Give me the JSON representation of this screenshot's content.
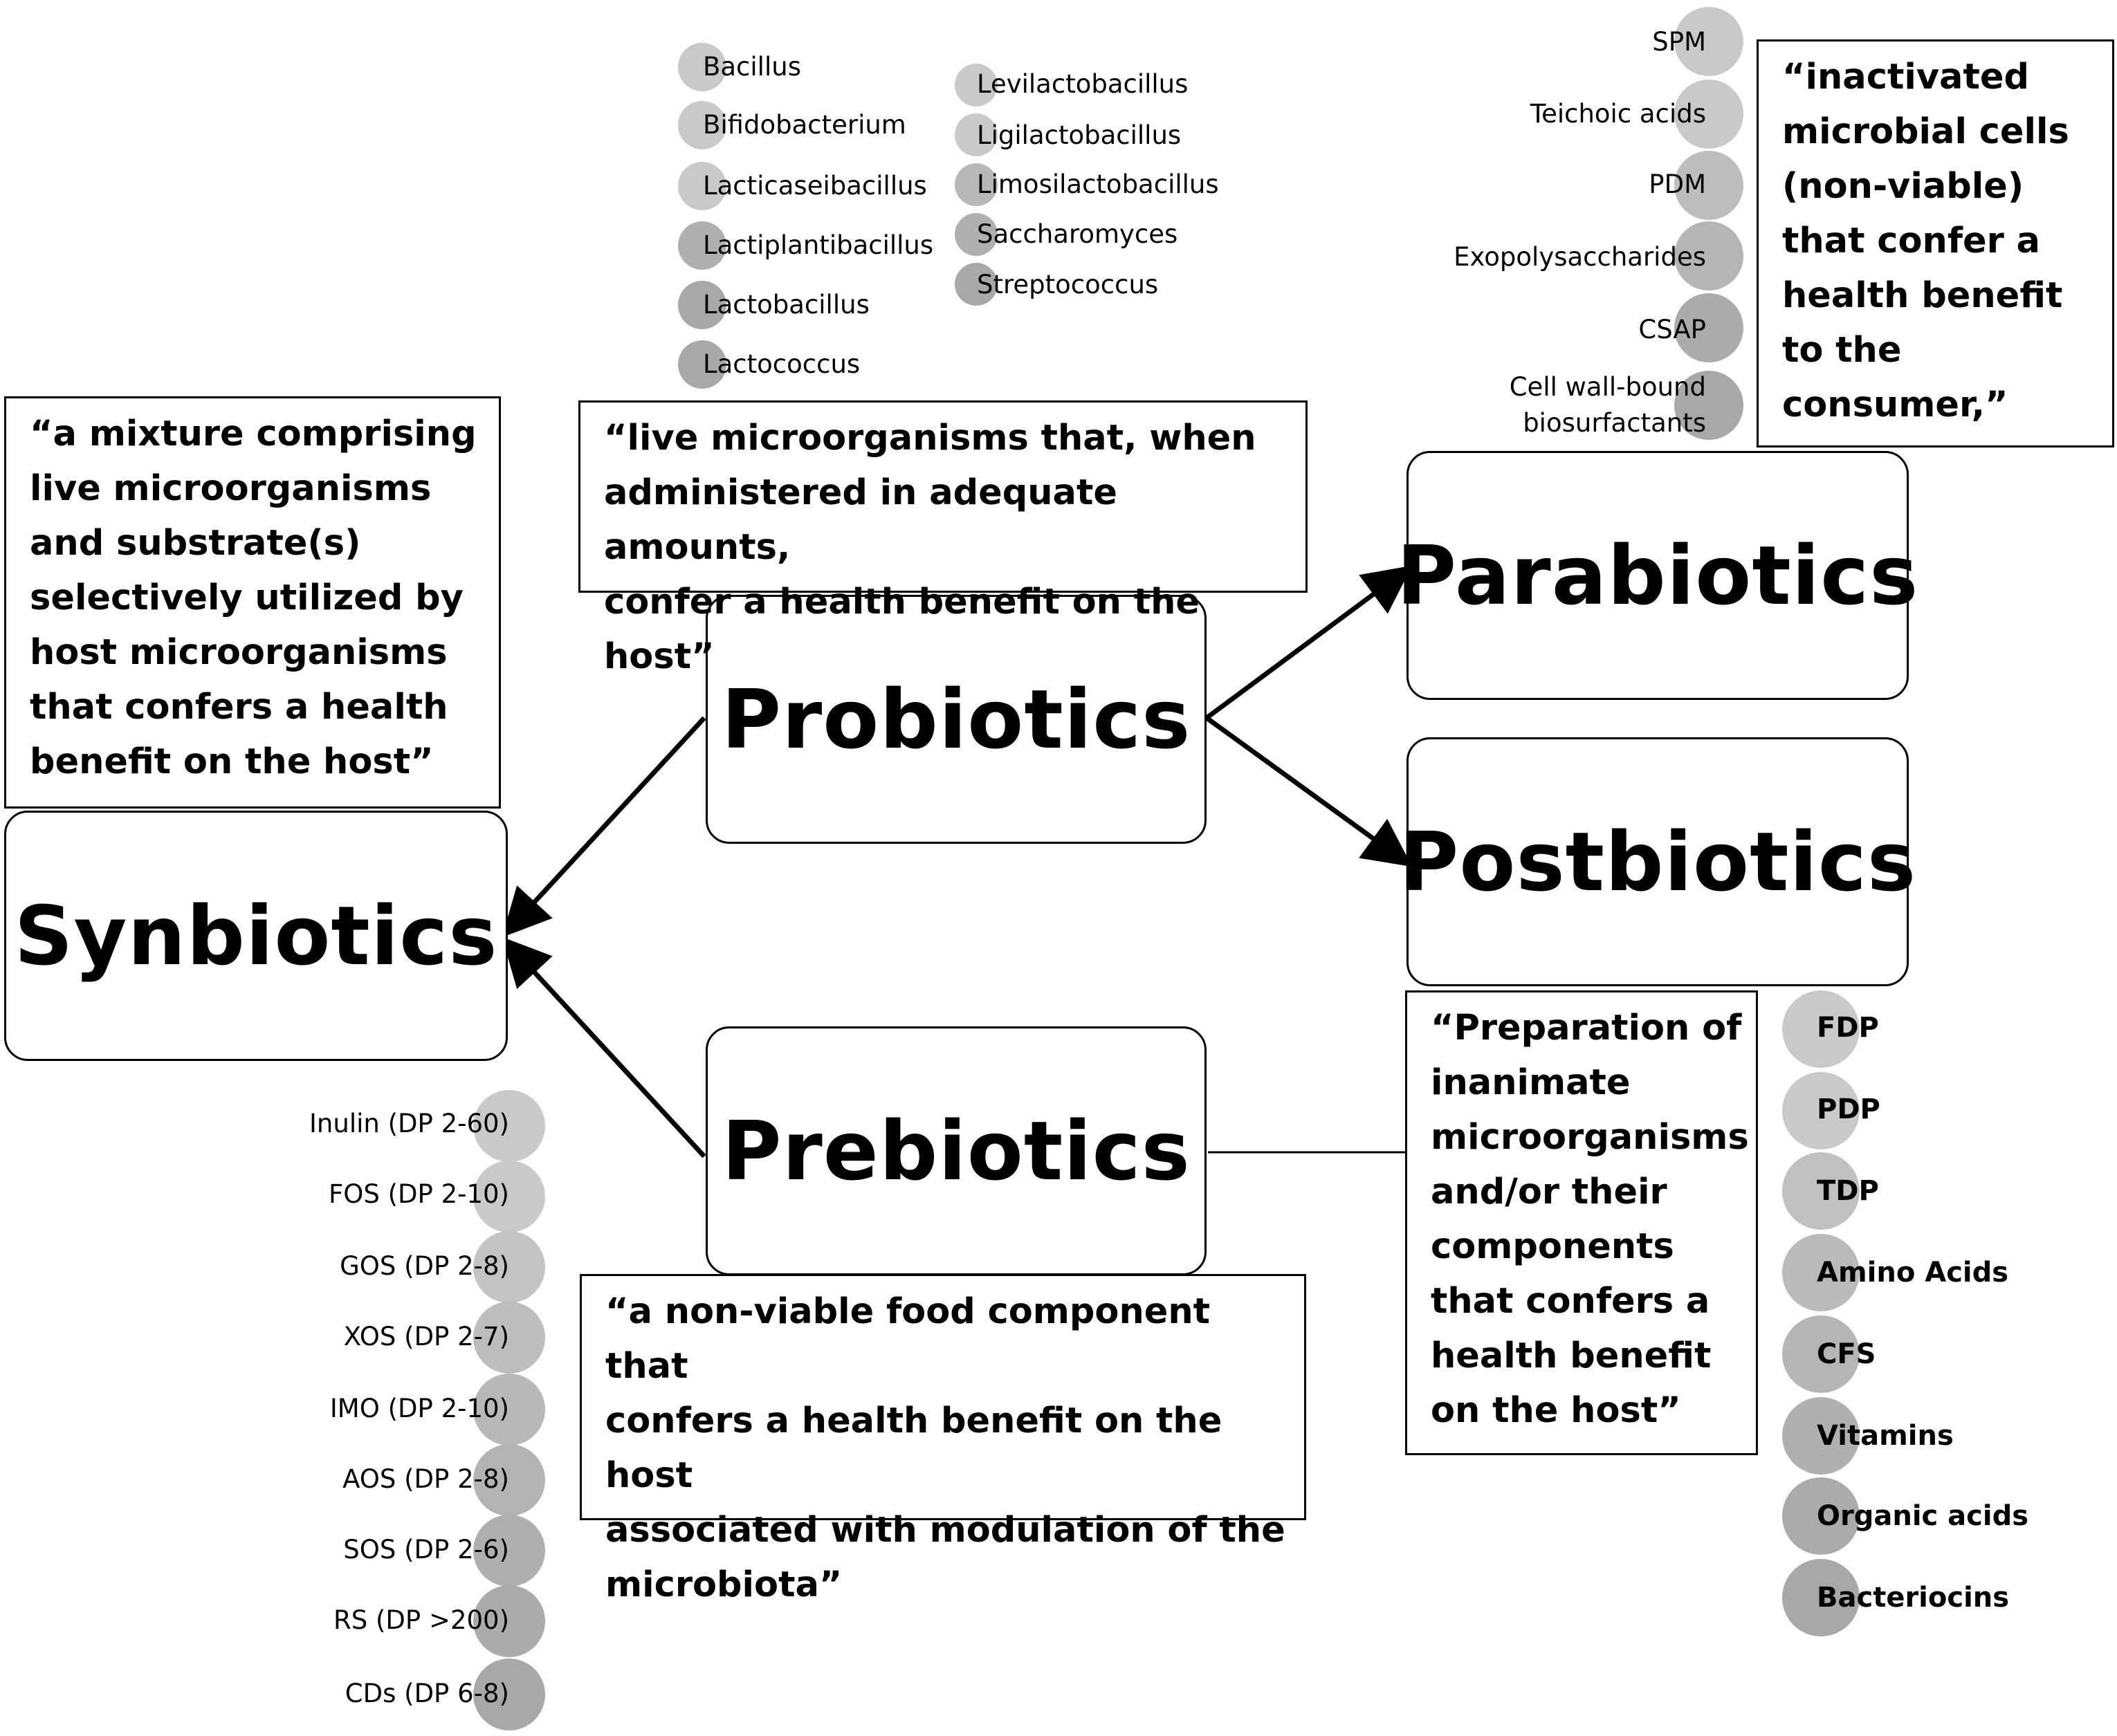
{
  "colors": {
    "circle_light": "#c9c9c9",
    "circle_dark": "#a8a8a8",
    "stroke": "#000000"
  },
  "nodes": {
    "synbiotics": "Synbiotics",
    "probiotics": "Probiotics",
    "prebiotics": "Prebiotics",
    "parabiotics": "Parabiotics",
    "postbiotics": "Postbiotics"
  },
  "definitions": {
    "synbiotics": "“a mixture comprising\nlive microorganisms\nand substrate(s)\nselectively utilized by\nhost microorganisms\nthat confers a health\nbenefit on the host”",
    "probiotics": "“live microorganisms that, when\nadministered in adequate amounts,\nconfer a health benefit on the host”",
    "prebiotics": "“a non-viable food component that\nconfers a health benefit on the host\nassociated with modulation of the\nmicrobiota”",
    "parabiotics": "“inactivated\nmicrobial cells\n(non-viable)\nthat confer a\nhealth benefit\nto the\nconsumer,”",
    "postbiotics": "“Preparation of\ninanimate\nmicroorganisms\nand/or their\ncomponents\nthat confers a\nhealth benefit\non the host”"
  },
  "probiotic_genera_col1": [
    "Bacillus",
    "Bifidobacterium",
    "Lacticaseibacillus",
    "Lactiplantibacillus",
    "Lactobacillus",
    "Lactococcus"
  ],
  "probiotic_genera_col2": [
    "Levilactobacillus",
    "Ligilactobacillus",
    "Limosilactobacillus",
    "Saccharomyces",
    "Streptococcus"
  ],
  "parabiotic_components": [
    "SPM",
    "Teichoic  acids",
    "PDM",
    "Exopolysaccharides",
    "CSAP",
    "Cell wall-bound\nbiosurfactants"
  ],
  "postbiotic_components": [
    "FDP",
    "PDP",
    "TDP",
    "Amino Acids",
    "CFS",
    "Vitamins",
    "Organic acids",
    "Bacteriocins"
  ],
  "prebiotic_compounds": [
    "Inulin (DP 2-60)",
    "FOS (DP 2-10)",
    "GOS (DP 2-8)",
    "XOS (DP 2-7)",
    "IMO (DP 2-10)",
    "AOS (DP 2-8)",
    "SOS (DP 2-6)",
    "RS (DP >200)",
    "CDs (DP 6-8)"
  ]
}
